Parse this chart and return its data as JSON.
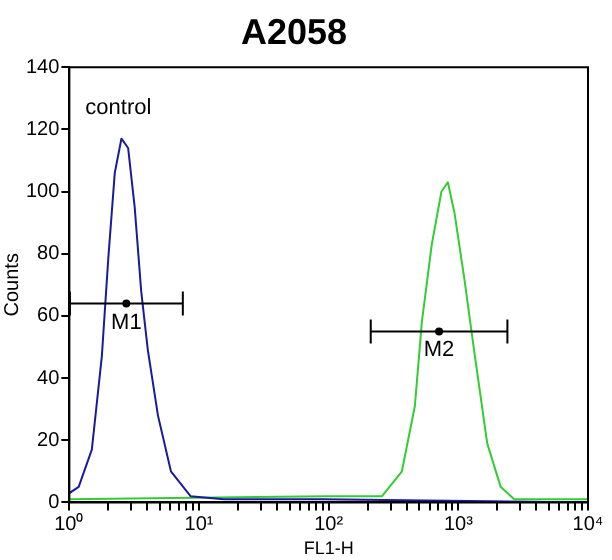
{
  "chart_data": {
    "type": "line",
    "title": "A2058",
    "xlabel": "FL1-H",
    "ylabel": "Counts",
    "log": "x",
    "xlim": [
      1,
      10000
    ],
    "ylim": [
      0,
      140
    ],
    "yticks": [
      0,
      20,
      40,
      60,
      80,
      100,
      120,
      140
    ],
    "xticks": [
      {
        "value": 1,
        "label": "10⁰"
      },
      {
        "value": 2,
        "label": null
      },
      {
        "value": 3,
        "label": null
      },
      {
        "value": 4,
        "label": null
      },
      {
        "value": 5,
        "label": null
      },
      {
        "value": 6,
        "label": null
      },
      {
        "value": 7,
        "label": null
      },
      {
        "value": 8,
        "label": null
      },
      {
        "value": 9,
        "label": null
      },
      {
        "value": 10,
        "label": "10¹"
      },
      {
        "value": 20,
        "label": null
      },
      {
        "value": 30,
        "label": null
      },
      {
        "value": 40,
        "label": null
      },
      {
        "value": 50,
        "label": null
      },
      {
        "value": 60,
        "label": null
      },
      {
        "value": 70,
        "label": null
      },
      {
        "value": 80,
        "label": null
      },
      {
        "value": 90,
        "label": null
      },
      {
        "value": 100,
        "label": "10²"
      },
      {
        "value": 200,
        "label": null
      },
      {
        "value": 300,
        "label": null
      },
      {
        "value": 400,
        "label": null
      },
      {
        "value": 500,
        "label": null
      },
      {
        "value": 600,
        "label": null
      },
      {
        "value": 700,
        "label": null
      },
      {
        "value": 800,
        "label": null
      },
      {
        "value": 900,
        "label": null
      },
      {
        "value": 1000,
        "label": "10³"
      },
      {
        "value": 2000,
        "label": null
      },
      {
        "value": 3000,
        "label": null
      },
      {
        "value": 4000,
        "label": null
      },
      {
        "value": 5000,
        "label": null
      },
      {
        "value": 6000,
        "label": null
      },
      {
        "value": 7000,
        "label": null
      },
      {
        "value": 8000,
        "label": null
      },
      {
        "value": 9000,
        "label": null
      },
      {
        "value": 10000,
        "label": "10⁴"
      }
    ],
    "grid": false,
    "legend": false,
    "marker": "none",
    "line_style": "solid",
    "series": [
      {
        "name": "control",
        "color": "#1a1a9c",
        "x": [
          1,
          1.18,
          1.49,
          1.78,
          2.0,
          2.24,
          2.52,
          2.84,
          3.19,
          3.58,
          4.03,
          4.82,
          6.07,
          8.6,
          15.5,
          90,
          10000
        ],
        "values": [
          3,
          5,
          17,
          47,
          79,
          106,
          117,
          114,
          95,
          68,
          49,
          28,
          10,
          2,
          1,
          1,
          0
        ]
      },
      {
        "color": "#33cc33",
        "x": [
          1,
          100,
          258,
          367,
          462,
          523,
          624,
          741,
          830,
          935,
          1112,
          1322,
          1670,
          2120,
          2700,
          10000
        ],
        "values": [
          1,
          2,
          2,
          10,
          31,
          58,
          83,
          100,
          103,
          93,
          72,
          49,
          19,
          5,
          1,
          1
        ]
      },
      {
        "name": "M1",
        "type": "scatter",
        "marker": "circle",
        "color": "#000000",
        "x": [
          2.75
        ],
        "values": [
          64
        ],
        "xerrors": [
          [
            1.01,
            7.5
          ]
        ]
      },
      {
        "name": "M2",
        "type": "scatter",
        "marker": "circle",
        "color": "#000000",
        "x": [
          710
        ],
        "values": [
          55
        ],
        "xerrors": [
          [
            211,
            2390
          ]
        ]
      }
    ]
  }
}
